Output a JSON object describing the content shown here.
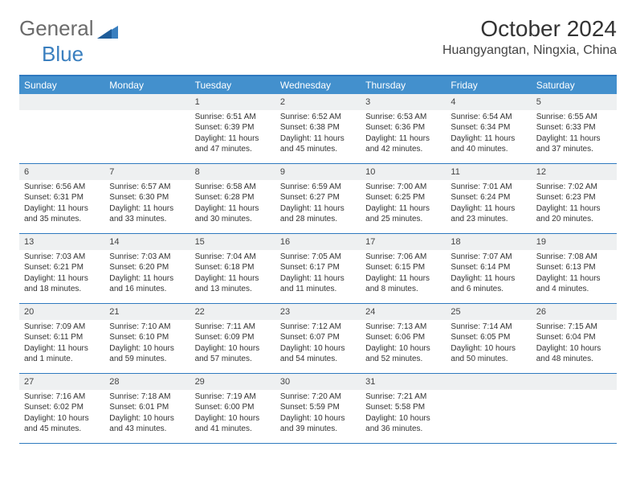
{
  "brand": {
    "general": "General",
    "blue": "Blue"
  },
  "title": "October 2024",
  "location": "Huangyangtan, Ningxia, China",
  "colors": {
    "header_bg": "#4390cd",
    "border": "#2f7abf",
    "cell_num_bg": "#eef0f1",
    "text": "#333",
    "brand_gray": "#6b6b6b",
    "brand_blue": "#3a7fbf"
  },
  "dayNames": [
    "Sunday",
    "Monday",
    "Tuesday",
    "Wednesday",
    "Thursday",
    "Friday",
    "Saturday"
  ],
  "weeks": [
    [
      {
        "n": "",
        "sr": "",
        "ss": "",
        "dl": ""
      },
      {
        "n": "",
        "sr": "",
        "ss": "",
        "dl": ""
      },
      {
        "n": "1",
        "sr": "Sunrise: 6:51 AM",
        "ss": "Sunset: 6:39 PM",
        "dl": "Daylight: 11 hours and 47 minutes."
      },
      {
        "n": "2",
        "sr": "Sunrise: 6:52 AM",
        "ss": "Sunset: 6:38 PM",
        "dl": "Daylight: 11 hours and 45 minutes."
      },
      {
        "n": "3",
        "sr": "Sunrise: 6:53 AM",
        "ss": "Sunset: 6:36 PM",
        "dl": "Daylight: 11 hours and 42 minutes."
      },
      {
        "n": "4",
        "sr": "Sunrise: 6:54 AM",
        "ss": "Sunset: 6:34 PM",
        "dl": "Daylight: 11 hours and 40 minutes."
      },
      {
        "n": "5",
        "sr": "Sunrise: 6:55 AM",
        "ss": "Sunset: 6:33 PM",
        "dl": "Daylight: 11 hours and 37 minutes."
      }
    ],
    [
      {
        "n": "6",
        "sr": "Sunrise: 6:56 AM",
        "ss": "Sunset: 6:31 PM",
        "dl": "Daylight: 11 hours and 35 minutes."
      },
      {
        "n": "7",
        "sr": "Sunrise: 6:57 AM",
        "ss": "Sunset: 6:30 PM",
        "dl": "Daylight: 11 hours and 33 minutes."
      },
      {
        "n": "8",
        "sr": "Sunrise: 6:58 AM",
        "ss": "Sunset: 6:28 PM",
        "dl": "Daylight: 11 hours and 30 minutes."
      },
      {
        "n": "9",
        "sr": "Sunrise: 6:59 AM",
        "ss": "Sunset: 6:27 PM",
        "dl": "Daylight: 11 hours and 28 minutes."
      },
      {
        "n": "10",
        "sr": "Sunrise: 7:00 AM",
        "ss": "Sunset: 6:25 PM",
        "dl": "Daylight: 11 hours and 25 minutes."
      },
      {
        "n": "11",
        "sr": "Sunrise: 7:01 AM",
        "ss": "Sunset: 6:24 PM",
        "dl": "Daylight: 11 hours and 23 minutes."
      },
      {
        "n": "12",
        "sr": "Sunrise: 7:02 AM",
        "ss": "Sunset: 6:23 PM",
        "dl": "Daylight: 11 hours and 20 minutes."
      }
    ],
    [
      {
        "n": "13",
        "sr": "Sunrise: 7:03 AM",
        "ss": "Sunset: 6:21 PM",
        "dl": "Daylight: 11 hours and 18 minutes."
      },
      {
        "n": "14",
        "sr": "Sunrise: 7:03 AM",
        "ss": "Sunset: 6:20 PM",
        "dl": "Daylight: 11 hours and 16 minutes."
      },
      {
        "n": "15",
        "sr": "Sunrise: 7:04 AM",
        "ss": "Sunset: 6:18 PM",
        "dl": "Daylight: 11 hours and 13 minutes."
      },
      {
        "n": "16",
        "sr": "Sunrise: 7:05 AM",
        "ss": "Sunset: 6:17 PM",
        "dl": "Daylight: 11 hours and 11 minutes."
      },
      {
        "n": "17",
        "sr": "Sunrise: 7:06 AM",
        "ss": "Sunset: 6:15 PM",
        "dl": "Daylight: 11 hours and 8 minutes."
      },
      {
        "n": "18",
        "sr": "Sunrise: 7:07 AM",
        "ss": "Sunset: 6:14 PM",
        "dl": "Daylight: 11 hours and 6 minutes."
      },
      {
        "n": "19",
        "sr": "Sunrise: 7:08 AM",
        "ss": "Sunset: 6:13 PM",
        "dl": "Daylight: 11 hours and 4 minutes."
      }
    ],
    [
      {
        "n": "20",
        "sr": "Sunrise: 7:09 AM",
        "ss": "Sunset: 6:11 PM",
        "dl": "Daylight: 11 hours and 1 minute."
      },
      {
        "n": "21",
        "sr": "Sunrise: 7:10 AM",
        "ss": "Sunset: 6:10 PM",
        "dl": "Daylight: 10 hours and 59 minutes."
      },
      {
        "n": "22",
        "sr": "Sunrise: 7:11 AM",
        "ss": "Sunset: 6:09 PM",
        "dl": "Daylight: 10 hours and 57 minutes."
      },
      {
        "n": "23",
        "sr": "Sunrise: 7:12 AM",
        "ss": "Sunset: 6:07 PM",
        "dl": "Daylight: 10 hours and 54 minutes."
      },
      {
        "n": "24",
        "sr": "Sunrise: 7:13 AM",
        "ss": "Sunset: 6:06 PM",
        "dl": "Daylight: 10 hours and 52 minutes."
      },
      {
        "n": "25",
        "sr": "Sunrise: 7:14 AM",
        "ss": "Sunset: 6:05 PM",
        "dl": "Daylight: 10 hours and 50 minutes."
      },
      {
        "n": "26",
        "sr": "Sunrise: 7:15 AM",
        "ss": "Sunset: 6:04 PM",
        "dl": "Daylight: 10 hours and 48 minutes."
      }
    ],
    [
      {
        "n": "27",
        "sr": "Sunrise: 7:16 AM",
        "ss": "Sunset: 6:02 PM",
        "dl": "Daylight: 10 hours and 45 minutes."
      },
      {
        "n": "28",
        "sr": "Sunrise: 7:18 AM",
        "ss": "Sunset: 6:01 PM",
        "dl": "Daylight: 10 hours and 43 minutes."
      },
      {
        "n": "29",
        "sr": "Sunrise: 7:19 AM",
        "ss": "Sunset: 6:00 PM",
        "dl": "Daylight: 10 hours and 41 minutes."
      },
      {
        "n": "30",
        "sr": "Sunrise: 7:20 AM",
        "ss": "Sunset: 5:59 PM",
        "dl": "Daylight: 10 hours and 39 minutes."
      },
      {
        "n": "31",
        "sr": "Sunrise: 7:21 AM",
        "ss": "Sunset: 5:58 PM",
        "dl": "Daylight: 10 hours and 36 minutes."
      },
      {
        "n": "",
        "sr": "",
        "ss": "",
        "dl": ""
      },
      {
        "n": "",
        "sr": "",
        "ss": "",
        "dl": ""
      }
    ]
  ]
}
